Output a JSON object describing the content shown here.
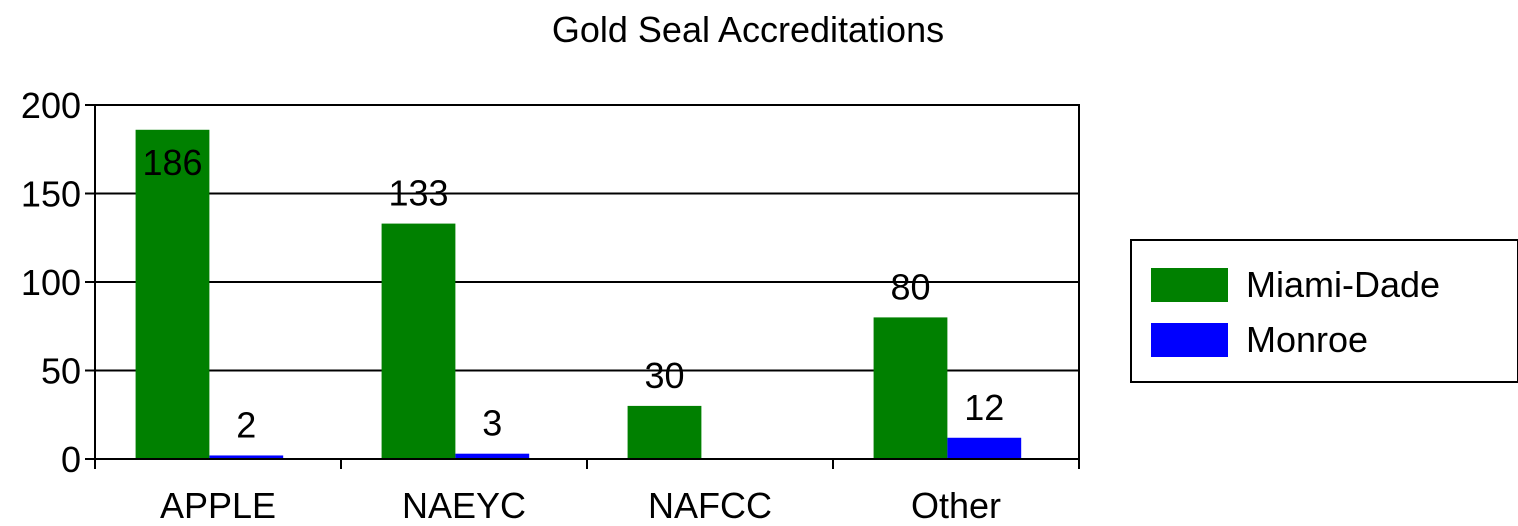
{
  "chart_data": {
    "type": "bar",
    "title": "Gold Seal Accreditations",
    "categories": [
      "APPLE",
      "NAEYC",
      "NAFCC",
      "Other"
    ],
    "series": [
      {
        "name": "Miami-Dade",
        "color": "#008000",
        "values": [
          186,
          133,
          30,
          80
        ],
        "labels": [
          "186",
          "133",
          "30",
          "80"
        ]
      },
      {
        "name": "Monroe",
        "color": "#0000FF",
        "values": [
          2,
          3,
          0,
          12
        ],
        "labels": [
          "2",
          "3",
          "",
          "12"
        ]
      }
    ],
    "ylim": [
      0,
      200
    ],
    "yticks": [
      "0",
      "50",
      "100",
      "150",
      "200"
    ],
    "grid": true,
    "legend": "right"
  }
}
